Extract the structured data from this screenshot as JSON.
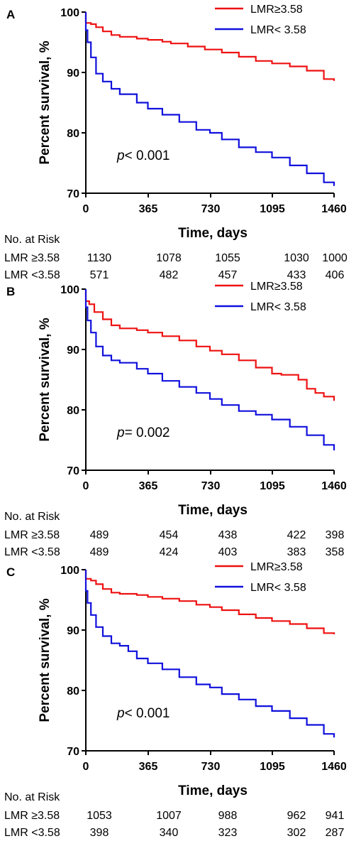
{
  "colors": {
    "series_high": "#ee1111",
    "series_low": "#1010dd",
    "axis": "#000000"
  },
  "risk_header": "No. at Risk",
  "chart_data": [
    {
      "type": "line",
      "panel": "A",
      "ylabel": "Percent survival, %",
      "xlabel": "Time, days",
      "xlim": [
        0,
        1460
      ],
      "ylim": [
        70,
        100
      ],
      "xticks": [
        "0",
        "365",
        "730",
        "1095",
        "1460"
      ],
      "yticks": [
        "70",
        "80",
        "90",
        "100"
      ],
      "annotation": {
        "prefix": "p",
        "text": "< 0.001"
      },
      "legend_position": "top-right",
      "series": [
        {
          "name": "LMR≥3.58",
          "color_key": "series_high",
          "x": [
            0,
            30,
            60,
            100,
            150,
            200,
            300,
            365,
            450,
            500,
            600,
            700,
            800,
            900,
            1000,
            1095,
            1200,
            1300,
            1400,
            1460
          ],
          "y": [
            98.2,
            98.0,
            97.5,
            96.8,
            96.2,
            95.9,
            95.6,
            95.4,
            95.1,
            94.8,
            94.3,
            93.8,
            93.3,
            92.6,
            91.9,
            91.5,
            91.0,
            90.3,
            88.9,
            88.6
          ]
        },
        {
          "name": "LMR< 3.58",
          "color_key": "series_low",
          "x": [
            0,
            10,
            30,
            60,
            100,
            150,
            200,
            300,
            365,
            450,
            550,
            650,
            730,
            800,
            900,
            1000,
            1095,
            1200,
            1300,
            1400,
            1460
          ],
          "y": [
            97.0,
            95.0,
            92.5,
            89.8,
            88.5,
            87.3,
            86.4,
            85.0,
            84.0,
            83.0,
            81.8,
            80.5,
            80.0,
            78.9,
            77.6,
            76.8,
            75.9,
            74.6,
            73.3,
            71.8,
            71.2
          ]
        }
      ],
      "risk_table": [
        {
          "label": "LMR ≥3.58",
          "values": [
            "1130",
            "1078",
            "1055",
            "1030",
            "1000"
          ]
        },
        {
          "label": "LMR <3.58",
          "values": [
            "571",
            "482",
            "457",
            "433",
            "406"
          ]
        }
      ]
    },
    {
      "type": "line",
      "panel": "B",
      "ylabel": "Percent survival, %",
      "xlabel": "Time, days",
      "xlim": [
        0,
        1460
      ],
      "ylim": [
        70,
        100
      ],
      "xticks": [
        "0",
        "365",
        "730",
        "1095",
        "1460"
      ],
      "yticks": [
        "70",
        "80",
        "90",
        "100"
      ],
      "annotation": {
        "prefix": "p",
        "text": "= 0.002"
      },
      "legend_position": "top-right",
      "series": [
        {
          "name": "LMR≥3.58",
          "color_key": "series_high",
          "x": [
            0,
            20,
            50,
            100,
            150,
            200,
            300,
            365,
            450,
            550,
            650,
            730,
            800,
            900,
            1000,
            1095,
            1150,
            1250,
            1300,
            1350,
            1400,
            1460
          ],
          "y": [
            98.0,
            97.5,
            96.2,
            95.0,
            94.0,
            93.5,
            93.2,
            92.8,
            92.2,
            91.5,
            90.5,
            89.8,
            89.2,
            88.2,
            87.0,
            86.0,
            85.8,
            85.0,
            83.5,
            82.8,
            82.2,
            81.5
          ]
        },
        {
          "name": "LMR< 3.58",
          "color_key": "series_low",
          "x": [
            0,
            10,
            30,
            60,
            100,
            150,
            200,
            300,
            365,
            450,
            550,
            650,
            730,
            800,
            900,
            1000,
            1095,
            1200,
            1300,
            1400,
            1460
          ],
          "y": [
            97.0,
            94.8,
            92.8,
            90.5,
            89.0,
            88.2,
            87.8,
            86.8,
            86.0,
            84.8,
            83.8,
            82.8,
            81.8,
            80.8,
            79.8,
            79.2,
            78.4,
            77.2,
            75.8,
            74.2,
            73.3
          ]
        }
      ],
      "risk_table": [
        {
          "label": "LMR ≥3.58",
          "values": [
            "489",
            "454",
            "438",
            "422",
            "398"
          ]
        },
        {
          "label": "LMR <3.58",
          "values": [
            "489",
            "424",
            "403",
            "383",
            "358"
          ]
        }
      ]
    },
    {
      "type": "line",
      "panel": "C",
      "ylabel": "Percent survival, %",
      "xlabel": "Time, days",
      "xlim": [
        0,
        1460
      ],
      "ylim": [
        70,
        100
      ],
      "xticks": [
        "0",
        "365",
        "730",
        "1095",
        "1460"
      ],
      "yticks": [
        "70",
        "80",
        "90",
        "100"
      ],
      "annotation": {
        "prefix": "p",
        "text": "< 0.001"
      },
      "legend_position": "top-right",
      "series": [
        {
          "name": "LMR≥3.58",
          "color_key": "series_high",
          "x": [
            0,
            30,
            60,
            100,
            150,
            200,
            300,
            365,
            450,
            550,
            650,
            730,
            800,
            900,
            1000,
            1095,
            1200,
            1300,
            1400,
            1460
          ],
          "y": [
            98.5,
            98.2,
            97.6,
            96.8,
            96.2,
            96.0,
            95.8,
            95.5,
            95.2,
            94.8,
            94.2,
            93.8,
            93.3,
            92.6,
            92.0,
            91.5,
            91.0,
            90.3,
            89.5,
            89.3
          ]
        },
        {
          "name": "LMR< 3.58",
          "color_key": "series_low",
          "x": [
            0,
            10,
            30,
            60,
            100,
            150,
            200,
            250,
            300,
            365,
            450,
            550,
            650,
            730,
            800,
            900,
            1000,
            1095,
            1200,
            1300,
            1400,
            1460
          ],
          "y": [
            96.5,
            94.5,
            92.5,
            90.5,
            89.0,
            87.8,
            87.4,
            86.5,
            85.3,
            84.5,
            83.5,
            82.2,
            81.0,
            80.5,
            79.4,
            78.5,
            77.4,
            76.6,
            75.4,
            74.3,
            72.8,
            72.2
          ]
        }
      ],
      "risk_table": [
        {
          "label": "LMR ≥3.58",
          "values": [
            "1053",
            "1007",
            "988",
            "962",
            "941"
          ]
        },
        {
          "label": "LMR <3.58",
          "values": [
            "398",
            "340",
            "323",
            "302",
            "287"
          ]
        }
      ]
    }
  ]
}
